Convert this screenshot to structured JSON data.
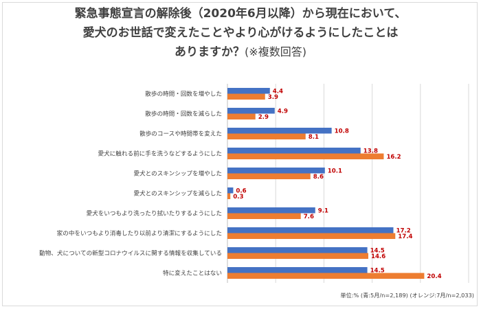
{
  "title": {
    "line1": "緊急事態宣言の解除後（2020年6月以降）から現在において、",
    "line2": "愛犬のお世話で変えたことやより心がけるようにしたことは",
    "line3_main": "ありますか？",
    "line3_sub": "(※複数回答)"
  },
  "footer": "単位:% (青:5月/n=2,189)  (オレンジ:7月/n=2,033)",
  "colors": {
    "blue": "#4472c4",
    "orange": "#ed7d31",
    "label": "#c00000"
  },
  "chart_data": {
    "type": "bar",
    "orientation": "horizontal",
    "categories": [
      "散歩の時間・回数を増やした",
      "散歩の時間・回数を減らした",
      "散歩のコースや時間帯を変えた",
      "愛犬に触れる前に手を洗うなどするようにした",
      "愛犬とのスキンシップを増やした",
      "愛犬とのスキンシップを減らした",
      "愛犬をいつもより洗ったり拭いたりするようにした",
      "家の中をいつもより消毒したり以前より清潔にするようにした",
      "動物、犬についての新型コロナウイルスに関する情報を収集している",
      "特に変えたことはない"
    ],
    "series": [
      {
        "name": "青:5月/n=2,189",
        "color": "#4472c4",
        "values": [
          4.4,
          4.9,
          10.8,
          13.8,
          10.1,
          0.6,
          9.1,
          17.2,
          14.5,
          14.5
        ],
        "labels": [
          "4.4",
          "4.9",
          "10.8",
          "13.8",
          "10.1",
          "0.6",
          "9.1",
          "17.2",
          "14.5",
          "14.5"
        ]
      },
      {
        "name": "オレンジ:7月/n=2,033",
        "color": "#ed7d31",
        "values": [
          3.9,
          2.9,
          8.1,
          16.2,
          8.6,
          0.3,
          7.6,
          17.4,
          14.6,
          20.4
        ],
        "labels": [
          "3.9",
          "2.9",
          "8.1",
          "16.2",
          "8.6",
          "0.3",
          "7.6",
          "17.4",
          "14.6",
          "20.4"
        ]
      }
    ],
    "xlim": [
      0,
      25
    ],
    "grid": true,
    "legend": "none"
  }
}
